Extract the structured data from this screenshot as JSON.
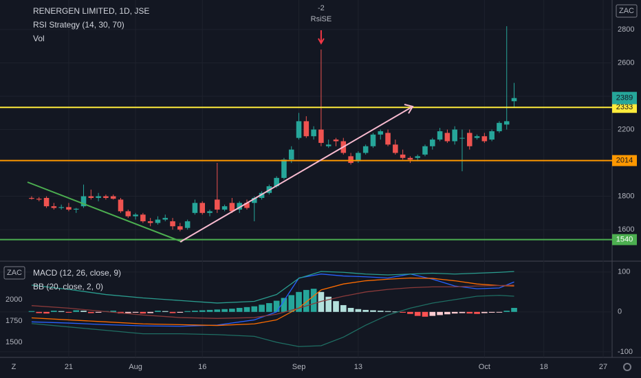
{
  "toolbar_label": "Z",
  "chart_data": [
    {
      "type": "candlestick",
      "title": "RENERGEN LIMITED, 1D, JSE",
      "indicators": [
        "RSI Strategy (14, 30, 70)",
        "Vol"
      ],
      "currency": "ZAC",
      "candles": [
        [
          1790,
          1800,
          1780,
          1785
        ],
        [
          1785,
          1795,
          1770,
          1780
        ],
        [
          1790,
          1800,
          1730,
          1740
        ],
        [
          1740,
          1760,
          1720,
          1730
        ],
        [
          1730,
          1750,
          1720,
          1735
        ],
        [
          1735,
          1760,
          1710,
          1720
        ],
        [
          1720,
          1730,
          1700,
          1725
        ],
        [
          1740,
          1870,
          1730,
          1800
        ],
        [
          1800,
          1840,
          1780,
          1790
        ],
        [
          1790,
          1820,
          1770,
          1800
        ],
        [
          1800,
          1810,
          1780,
          1790
        ],
        [
          1800,
          1810,
          1780,
          1785
        ],
        [
          1780,
          1790,
          1700,
          1710
        ],
        [
          1710,
          1720,
          1670,
          1680
        ],
        [
          1680,
          1700,
          1660,
          1690
        ],
        [
          1690,
          1700,
          1640,
          1650
        ],
        [
          1650,
          1670,
          1620,
          1640
        ],
        [
          1640,
          1680,
          1630,
          1660
        ],
        [
          1660,
          1690,
          1650,
          1670
        ],
        [
          1650,
          1670,
          1600,
          1620
        ],
        [
          1620,
          1640,
          1590,
          1600
        ],
        [
          1610,
          1660,
          1600,
          1650
        ],
        [
          1700,
          1780,
          1690,
          1760
        ],
        [
          1760,
          1770,
          1690,
          1700
        ],
        [
          1700,
          1720,
          1680,
          1710
        ],
        [
          1780,
          2000,
          1700,
          1720
        ],
        [
          1720,
          1750,
          1710,
          1740
        ],
        [
          1760,
          1790,
          1700,
          1710
        ],
        [
          1720,
          1770,
          1700,
          1760
        ],
        [
          1760,
          1780,
          1720,
          1730
        ],
        [
          1760,
          1800,
          1650,
          1790
        ],
        [
          1790,
          1830,
          1780,
          1820
        ],
        [
          1820,
          1870,
          1810,
          1860
        ],
        [
          1860,
          1920,
          1850,
          1910
        ],
        [
          1910,
          2030,
          1900,
          2020
        ],
        [
          2020,
          2100,
          2000,
          2080
        ],
        [
          2150,
          2300,
          2140,
          2250
        ],
        [
          2250,
          2280,
          2150,
          2160
        ],
        [
          2160,
          2220,
          2140,
          2200
        ],
        [
          2200,
          2680,
          2100,
          2120
        ],
        [
          2100,
          2140,
          2090,
          2110
        ],
        [
          2140,
          2150,
          2100,
          2130
        ],
        [
          2130,
          2150,
          2050,
          2060
        ],
        [
          2040,
          2060,
          1990,
          2000
        ],
        [
          2010,
          2070,
          2000,
          2060
        ],
        [
          2060,
          2110,
          2050,
          2100
        ],
        [
          2100,
          2180,
          2090,
          2170
        ],
        [
          2170,
          2200,
          2140,
          2190
        ],
        [
          2180,
          2200,
          2100,
          2110
        ],
        [
          2110,
          2140,
          2050,
          2060
        ],
        [
          2050,
          2080,
          2020,
          2030
        ],
        [
          2030,
          2040,
          2000,
          2020
        ],
        [
          2030,
          2050,
          2010,
          2040
        ],
        [
          2050,
          2110,
          2040,
          2100
        ],
        [
          2100,
          2150,
          2080,
          2140
        ],
        [
          2140,
          2210,
          2130,
          2190
        ],
        [
          2180,
          2200,
          2120,
          2130
        ],
        [
          2130,
          2220,
          2110,
          2200
        ],
        [
          2150,
          2200,
          1950,
          2150
        ],
        [
          2180,
          2200,
          2080,
          2100
        ],
        [
          2150,
          2170,
          2140,
          2160
        ],
        [
          2160,
          2180,
          2120,
          2130
        ],
        [
          2140,
          2200,
          2130,
          2190
        ],
        [
          2190,
          2250,
          2180,
          2240
        ],
        [
          2230,
          2820,
          2200,
          2250
        ],
        [
          2370,
          2480,
          2330,
          2389
        ]
      ],
      "ylim": [
        1419,
        2977
      ],
      "yticks": [
        1600,
        1800,
        2000,
        2200,
        2400,
        2600,
        2800
      ],
      "xlim": [
        -4.26,
        78.2
      ],
      "xticks": [
        {
          "value": 5,
          "label": "21"
        },
        {
          "value": 14,
          "label": "Aug"
        },
        {
          "value": 23,
          "label": "16"
        },
        {
          "value": 36,
          "label": "Sep"
        },
        {
          "value": 44,
          "label": "13"
        },
        {
          "value": 61,
          "label": "Oct"
        },
        {
          "value": 69,
          "label": "18"
        },
        {
          "value": 77,
          "label": "27"
        }
      ],
      "last_price": 2389,
      "last_color": "#26a69a",
      "levels": [
        {
          "value": 2333,
          "color": "#ffeb3b"
        },
        {
          "value": 2014,
          "color": "#ff9800"
        },
        {
          "value": 1540,
          "color": "#4caf50"
        }
      ],
      "signal": {
        "index": 39,
        "value": -2,
        "label": "RsiSE",
        "color": "#f23645"
      }
    },
    {
      "type": "macd",
      "title": "MACD (12, 26, close, 9)",
      "overlay": "BB (20, close, 2, 0)",
      "currency": "ZAC",
      "histogram": [
        2,
        -3,
        -4,
        3,
        2,
        -2,
        4,
        3,
        -3,
        -2,
        2,
        3,
        -4,
        -3,
        -2,
        -4,
        -3,
        3,
        2,
        -3,
        -2,
        2,
        3,
        4,
        5,
        6,
        7,
        8,
        10,
        12,
        14,
        18,
        22,
        28,
        35,
        42,
        50,
        55,
        58,
        50,
        38,
        27,
        17,
        10,
        7,
        5,
        4,
        3,
        2,
        1,
        -2,
        -5,
        -10,
        -12,
        -10,
        -8,
        -6,
        -4,
        -3,
        -4,
        -5,
        -3,
        -2,
        -1,
        3,
        10
      ],
      "ylim": [
        -114,
        122
      ],
      "yticks": [
        -100,
        0,
        100
      ],
      "y2lim": [
        1323,
        2427
      ],
      "y2ticks": [
        1500,
        1750,
        2000
      ],
      "series": [
        {
          "color": "#2962ff",
          "x": [
            0,
            5,
            10,
            15,
            20,
            25,
            30,
            33,
            36,
            39,
            42,
            45,
            48,
            51,
            54,
            57,
            60,
            63,
            65
          ],
          "values": [
            -25,
            -28,
            -32,
            -35,
            -36,
            -33,
            -20,
            0,
            85,
            95,
            90,
            88,
            85,
            95,
            82,
            65,
            58,
            60,
            75
          ]
        },
        {
          "color": "#ff6d00",
          "x": [
            0,
            5,
            10,
            15,
            20,
            25,
            30,
            33,
            36,
            39,
            42,
            45,
            48,
            51,
            54,
            57,
            60,
            63,
            65
          ],
          "values": [
            -15,
            -20,
            -25,
            -30,
            -32,
            -34,
            -30,
            -20,
            10,
            55,
            70,
            78,
            82,
            85,
            84,
            78,
            70,
            66,
            65
          ]
        },
        {
          "color": "#2a9d8f",
          "axis": "y2",
          "x": [
            0,
            5,
            10,
            15,
            20,
            25,
            30,
            33,
            36,
            39,
            42,
            45,
            48,
            51,
            54,
            57,
            60,
            63,
            65
          ],
          "values": [
            2170,
            2120,
            2060,
            2020,
            1990,
            1960,
            1980,
            2060,
            2250,
            2330,
            2320,
            2300,
            2290,
            2300,
            2310,
            2300,
            2310,
            2320,
            2330
          ]
        },
        {
          "color": "#8b3a3a",
          "axis": "y2",
          "x": [
            0,
            5,
            10,
            15,
            20,
            25,
            30,
            33,
            36,
            39,
            42,
            45,
            48,
            51,
            54,
            57,
            60,
            63,
            65
          ],
          "values": [
            1930,
            1900,
            1860,
            1820,
            1790,
            1780,
            1790,
            1830,
            1900,
            1980,
            2040,
            2090,
            2120,
            2140,
            2150,
            2150,
            2160,
            2165,
            2170
          ]
        },
        {
          "color": "#1f6f64",
          "axis": "y2",
          "x": [
            0,
            5,
            10,
            15,
            20,
            25,
            30,
            33,
            36,
            39,
            42,
            45,
            48,
            51,
            54,
            57,
            60,
            63,
            65
          ],
          "values": [
            1720,
            1680,
            1640,
            1600,
            1600,
            1590,
            1570,
            1500,
            1450,
            1460,
            1560,
            1700,
            1820,
            1900,
            1960,
            2000,
            2040,
            2050,
            2040
          ]
        }
      ]
    }
  ]
}
